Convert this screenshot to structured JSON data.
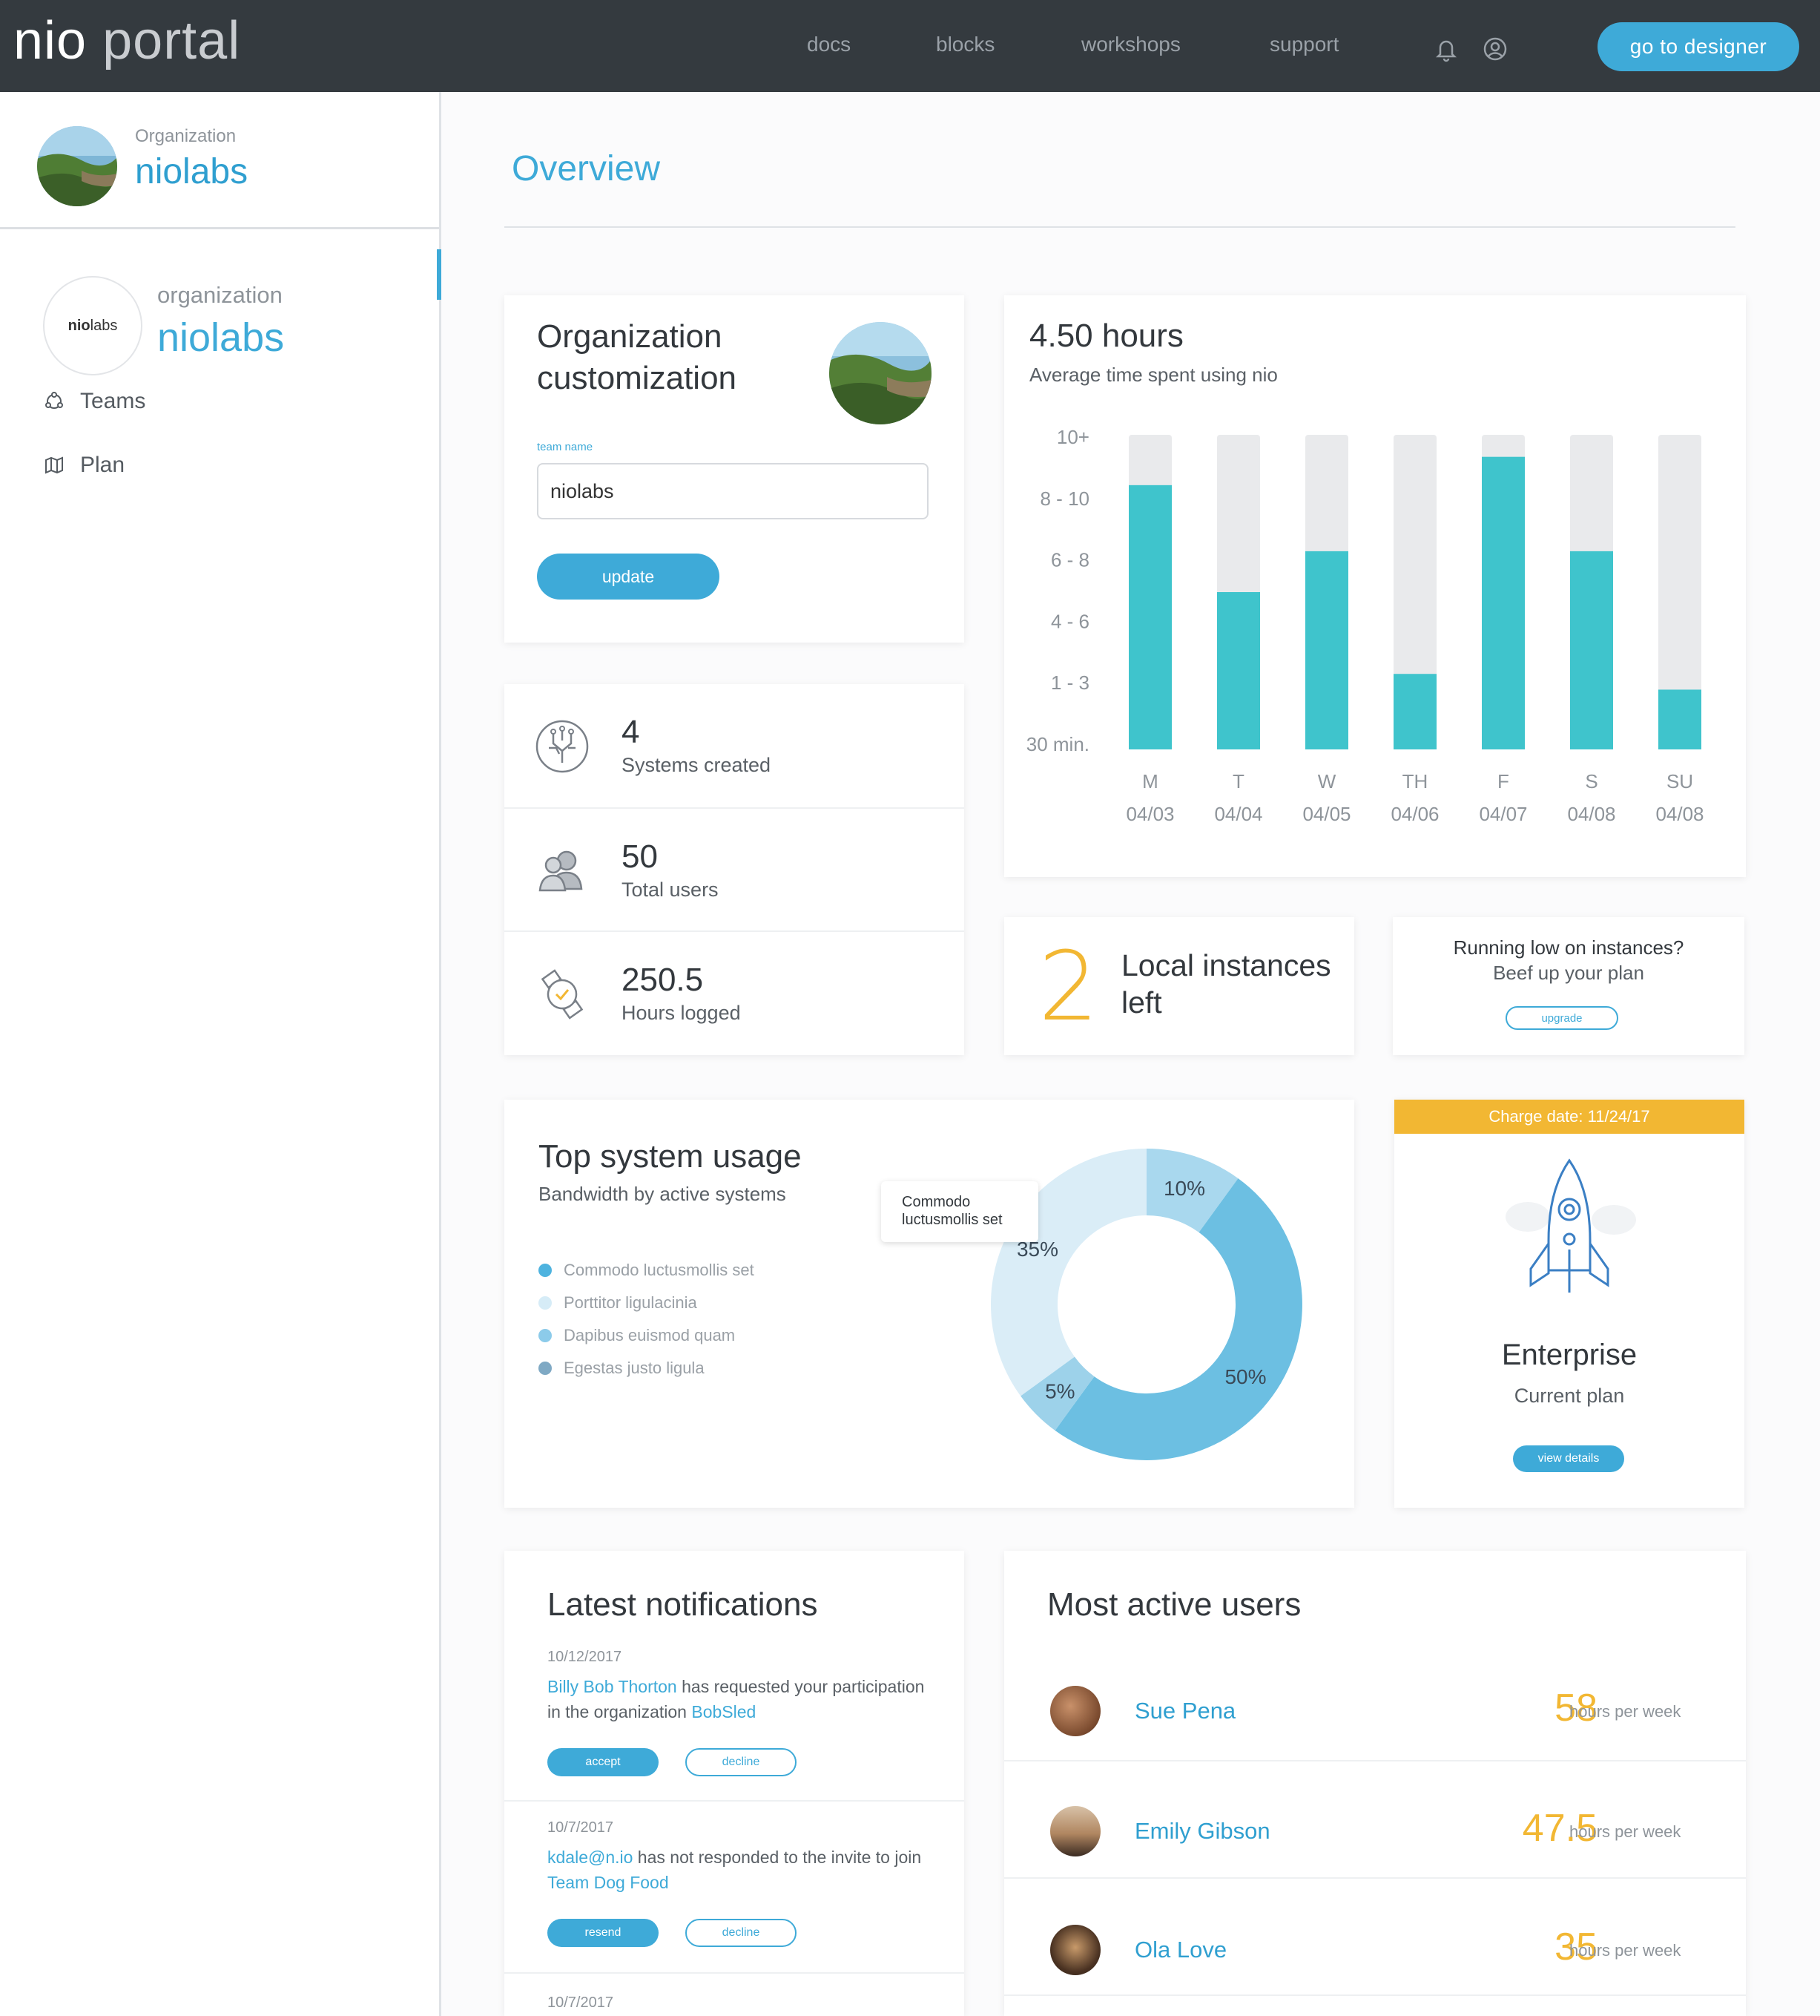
{
  "app": {
    "logo_primary": "nio",
    "logo_secondary": "portal"
  },
  "nav": {
    "links": [
      "docs",
      "blocks",
      "workshops",
      "support"
    ],
    "icons": [
      "bell-icon",
      "user-icon"
    ],
    "cta": "go to designer"
  },
  "sidebar": {
    "header_label": "Organization",
    "header_name": "niolabs",
    "org_logo_bold": "nio",
    "org_logo_light": "labs",
    "org_label": "organization",
    "org_name": "niolabs",
    "items": [
      {
        "label": "Teams",
        "icon": "teams-icon"
      },
      {
        "label": "Plan",
        "icon": "plan-icon"
      }
    ]
  },
  "page": {
    "title": "Overview"
  },
  "org_card": {
    "title": "Organization customization",
    "field_label": "team name",
    "field_value": "niolabs",
    "button": "update"
  },
  "stats": [
    {
      "value": "4",
      "label": "Systems created",
      "icon": "systems-icon"
    },
    {
      "value": "50",
      "label": "Total users",
      "icon": "users-icon"
    },
    {
      "value": "250.5",
      "label": "Hours logged",
      "icon": "hours-icon"
    }
  ],
  "hours_card": {
    "value": "4.50 hours",
    "subtitle": "Average time spent using nio"
  },
  "chart_data": [
    {
      "type": "bar",
      "y_tick_labels": [
        "10+",
        "8 - 10",
        "6 - 8",
        "4 - 6",
        "1 - 3",
        "30 min."
      ],
      "categories": [
        "M",
        "T",
        "W",
        "TH",
        "F",
        "S",
        "SU"
      ],
      "dates": [
        "04/03",
        "04/04",
        "04/05",
        "04/06",
        "04/07",
        "04/08",
        "04/08"
      ],
      "values": [
        0.84,
        0.5,
        0.63,
        0.24,
        0.93,
        0.63,
        0.19
      ],
      "value_scale": "fraction of full bar height (10+ = 1.0)",
      "colors": {
        "bar": "#3fc4cc",
        "track": "#e9eaec"
      }
    },
    {
      "type": "pie",
      "title": "Top system usage",
      "subtitle": "Bandwidth by active systems",
      "series": [
        {
          "name": "Commodo luctusmollis set",
          "value": 10,
          "label": "10%",
          "color": "#a9d8ee"
        },
        {
          "name": "Porttitor ligulacinia",
          "value": 50,
          "label": "50%",
          "color": "#6cbfe2"
        },
        {
          "name": "Dapibus euismod quam",
          "value": 5,
          "label": "5%",
          "color": "#9dd2ea"
        },
        {
          "name": "Egestas justo ligula",
          "value": 35,
          "label": "35%",
          "color": "#daedf7"
        }
      ],
      "legend_colors": [
        "#4eb3df",
        "#d6ecf7",
        "#8ccbea",
        "#7fa9c4"
      ],
      "tooltip": "Commodo luctusmollis set"
    }
  ],
  "instances": {
    "count": "2",
    "label": "Local instances left"
  },
  "upgrade_card": {
    "line1": "Running low on instances?",
    "line2": "Beef up your plan",
    "button": "upgrade"
  },
  "plan_card": {
    "charge": "Charge date: 11/24/17",
    "name": "Enterprise",
    "label": "Current plan",
    "button": "view details"
  },
  "notifications": {
    "title": "Latest notifications",
    "items": [
      {
        "date": "10/12/2017",
        "link1": "Billy Bob Thorton",
        "text": " has requested your participation in the organization ",
        "link2": "BobSled",
        "text2": "",
        "primary": "accept",
        "secondary": "decline"
      },
      {
        "date": "10/7/2017",
        "link1": "kdale@n.io",
        "text": " has not responded to the invite to join ",
        "link2": "Team Dog Food",
        "text2": "",
        "primary": "resend",
        "secondary": "decline"
      },
      {
        "date": "10/7/2017"
      }
    ]
  },
  "active_users": {
    "title": "Most active users",
    "unit": "hours per week",
    "users": [
      {
        "name": "Sue Pena",
        "hours": "58"
      },
      {
        "name": "Emily Gibson",
        "hours": "47.5"
      },
      {
        "name": "Ola Love",
        "hours": "35"
      }
    ]
  }
}
